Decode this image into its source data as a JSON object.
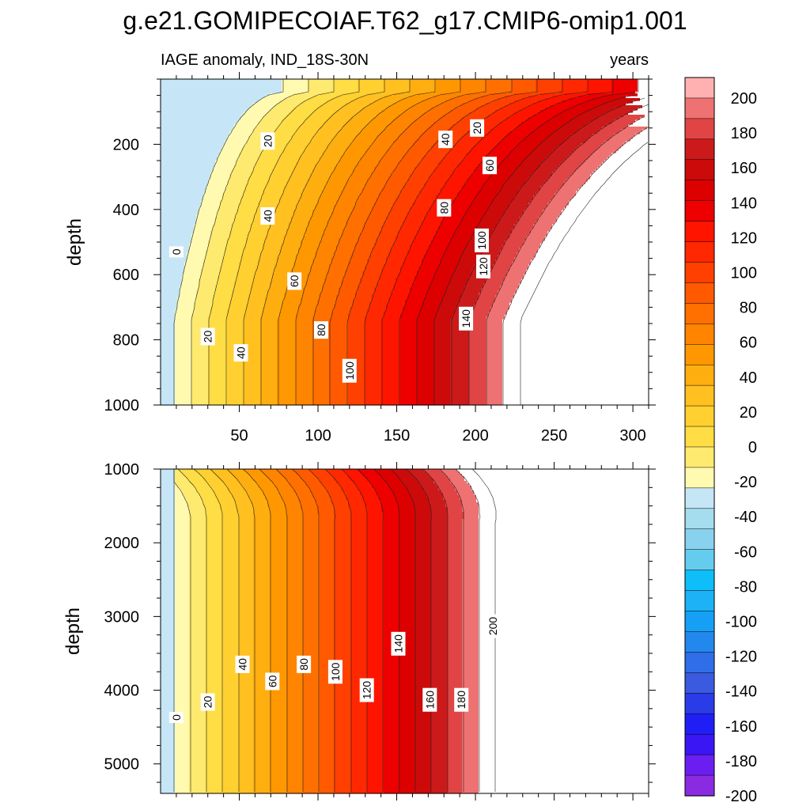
{
  "title": "g.e21.GOMIPECOIAF.T62_g17.CMIP6-omip1.001",
  "subtitle_left": "IAGE anomaly, IND_18S-30N",
  "subtitle_right": "years",
  "colors": {
    "levels": [
      -200,
      -180,
      -160,
      -140,
      -120,
      -100,
      -80,
      -60,
      -40,
      -20,
      0,
      20,
      40,
      60,
      80,
      100,
      120,
      140,
      160,
      180,
      200
    ],
    "fills": [
      "#8a2be2",
      "#6a1ff0",
      "#3a16f5",
      "#1f1ff5",
      "#2a3ce8",
      "#3a5ae0",
      "#2f6ee8",
      "#2288ee",
      "#15a0f5",
      "#1cb2f5",
      "#0dbef8",
      "#66ccee",
      "#88d2ee",
      "#a5dcee",
      "#c5e6f5",
      "#fffab0",
      "#ffea70",
      "#ffdd44",
      "#ffd030",
      "#ffc020",
      "#ffae10",
      "#ff9800",
      "#ff8400",
      "#ff7000",
      "#ff5a00",
      "#ff4000",
      "#ff2800",
      "#ff1400",
      "#ee0000",
      "#dd0000",
      "#cc0a0a",
      "#cc1a1a",
      "#e04444",
      "#ee7272",
      "#ffb0b0"
    ]
  },
  "chart_data": [
    {
      "type": "heatmap",
      "panel": "upper",
      "xlabel": "",
      "ylabel": "depth",
      "xlim": [
        0,
        310
      ],
      "ylim": [
        1000,
        0
      ],
      "x_ticks": [
        50,
        100,
        150,
        200,
        250,
        300
      ],
      "y_ticks": [
        200,
        400,
        600,
        800,
        1000
      ],
      "contour_levels": [
        0,
        20,
        40,
        60,
        80,
        100,
        120,
        140,
        160,
        180,
        200
      ],
      "contour_labels": [
        {
          "text": "0",
          "x": 10,
          "y": 530
        },
        {
          "text": "20",
          "x": 30,
          "y": 790
        },
        {
          "text": "40",
          "x": 51,
          "y": 840
        },
        {
          "text": "60",
          "x": 85,
          "y": 620
        },
        {
          "text": "80",
          "x": 102,
          "y": 770
        },
        {
          "text": "100",
          "x": 120,
          "y": 895
        },
        {
          "text": "40",
          "x": 68,
          "y": 420
        },
        {
          "text": "20",
          "x": 68,
          "y": 190
        },
        {
          "text": "20",
          "x": 201,
          "y": 150
        },
        {
          "text": "40",
          "x": 181,
          "y": 185
        },
        {
          "text": "60",
          "x": 209,
          "y": 265
        },
        {
          "text": "80",
          "x": 180,
          "y": 395
        },
        {
          "text": "100",
          "x": 204,
          "y": 495
        },
        {
          "text": "120",
          "x": 205,
          "y": 575
        },
        {
          "text": "140",
          "x": 194,
          "y": 735
        }
      ]
    },
    {
      "type": "heatmap",
      "panel": "lower",
      "xlabel": "",
      "ylabel": "depth",
      "xlim": [
        0,
        310
      ],
      "ylim": [
        5400,
        1000
      ],
      "y_ticks": [
        1000,
        2000,
        3000,
        4000,
        5000
      ],
      "contour_levels": [
        0,
        20,
        40,
        60,
        80,
        100,
        120,
        140,
        160,
        180,
        200
      ],
      "contour_labels": [
        {
          "text": "0",
          "x": 10,
          "y": 4370
        },
        {
          "text": "20",
          "x": 30,
          "y": 4160
        },
        {
          "text": "40",
          "x": 52,
          "y": 3650
        },
        {
          "text": "60",
          "x": 71,
          "y": 3880
        },
        {
          "text": "80",
          "x": 91,
          "y": 3650
        },
        {
          "text": "100",
          "x": 111,
          "y": 3750
        },
        {
          "text": "120",
          "x": 131,
          "y": 4000
        },
        {
          "text": "140",
          "x": 151,
          "y": 3370
        },
        {
          "text": "160",
          "x": 171,
          "y": 4130
        },
        {
          "text": "180",
          "x": 191,
          "y": 4130
        },
        {
          "text": "200",
          "x": 211,
          "y": 3130
        }
      ]
    }
  ],
  "colorbar": {
    "labels": [
      "200",
      "180",
      "160",
      "140",
      "120",
      "100",
      "80",
      "60",
      "40",
      "20",
      "0",
      "-20",
      "-40",
      "-60",
      "-80",
      "-100",
      "-120",
      "-140",
      "-160",
      "-180",
      "-200"
    ]
  }
}
